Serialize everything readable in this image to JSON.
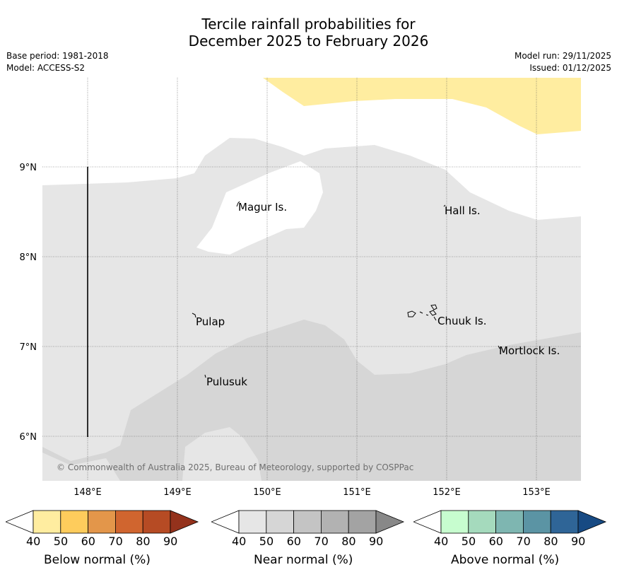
{
  "title": {
    "line1": "Tercile rainfall probabilities for",
    "line2": "December 2025 to February 2026"
  },
  "meta": {
    "base_period": "Base period: 1981-2018",
    "model": "Model: ACCESS-S2",
    "model_run": "Model run: 29/11/2025",
    "issued": "Issued: 01/12/2025"
  },
  "map": {
    "lon_labels": [
      "148°E",
      "149°E",
      "150°E",
      "151°E",
      "152°E",
      "153°E"
    ],
    "lat_labels": [
      "9°N",
      "8°N",
      "7°N",
      "6°N"
    ],
    "places": [
      "Magur Is.",
      "Hall Is.",
      "Pulap",
      "Chuuk Is.",
      "Mortlock Is.",
      "Pulusuk"
    ],
    "copyright": "© Commonwealth of Australia 2025, Bureau of Meteorology, supported by COSPPac",
    "colors": {
      "white": "#ffffff",
      "near_normal_40": "#e6e6e6",
      "near_normal_50": "#d6d6d6",
      "below_normal_40": "#ffeda0"
    }
  },
  "legends": [
    {
      "caption": "Below normal (%)",
      "ticks": [
        "40",
        "50",
        "60",
        "70",
        "80",
        "90"
      ],
      "colors": [
        "#ffffff",
        "#ffeda0",
        "#fecc5c",
        "#e3964a",
        "#d0652f",
        "#b64b24",
        "#94321c"
      ]
    },
    {
      "caption": "Near normal (%)",
      "ticks": [
        "40",
        "50",
        "60",
        "70",
        "80",
        "90"
      ],
      "colors": [
        "#ffffff",
        "#e6e6e6",
        "#d6d6d6",
        "#c4c4c4",
        "#b2b2b2",
        "#a3a3a3",
        "#888888"
      ]
    },
    {
      "caption": "Above normal (%)",
      "ticks": [
        "40",
        "50",
        "60",
        "70",
        "80",
        "90"
      ],
      "colors": [
        "#ffffff",
        "#c7fdcf",
        "#a5dabd",
        "#7eb6b1",
        "#5b94a4",
        "#2f6597",
        "#174a83"
      ]
    }
  ]
}
